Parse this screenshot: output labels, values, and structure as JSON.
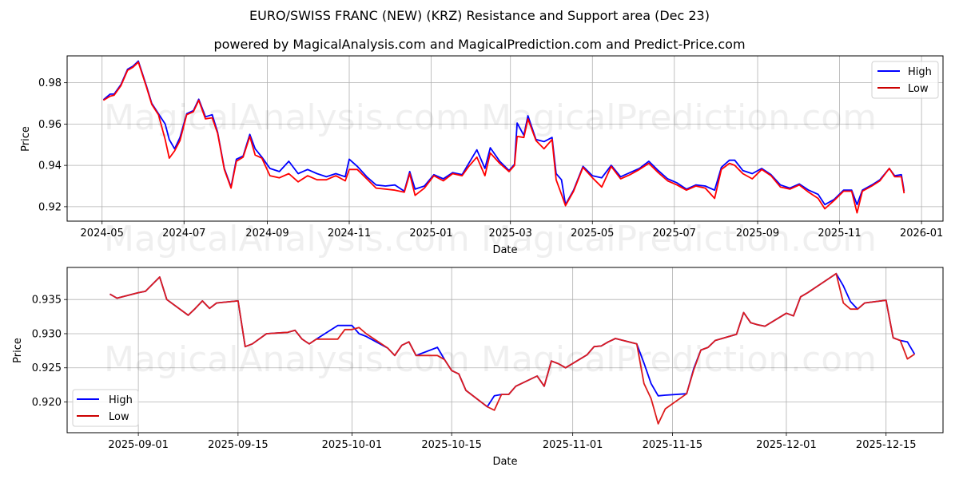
{
  "header": {
    "title": "EURO/SWISS FRANC (NEW) (KRZ) Resistance and Support area (Dec 23)",
    "subtitle": "powered by MagicalAnalysis.com and MagicalPrediction.com and Predict-Price.com"
  },
  "watermarks": [
    "MagicalAnalysis.com",
    "MagicalPrediction.com"
  ],
  "colors": {
    "high": "#0000ff",
    "low": "#ff0000",
    "grid": "#b0b0b0"
  },
  "chart_data": [
    {
      "type": "line",
      "title": "EURO/SWISS FRANC (NEW) (KRZ) Resistance and Support area (Dec 23)",
      "xlabel": "Date",
      "ylabel": "Price",
      "ylim": [
        0.913,
        0.993
      ],
      "xlim": [
        "2024-04-05",
        "2026-01-17"
      ],
      "grid": true,
      "legend_position": "upper right",
      "x_ticks": [
        "2024-05",
        "2024-07",
        "2024-09",
        "2024-11",
        "2025-01",
        "2025-03",
        "2025-05",
        "2025-07",
        "2025-09",
        "2025-11",
        "2026-01"
      ],
      "y_ticks": [
        0.92,
        0.94,
        0.96,
        0.98
      ],
      "x": [
        "2024-05-02",
        "2024-05-07",
        "2024-05-10",
        "2024-05-15",
        "2024-05-20",
        "2024-05-24",
        "2024-05-28",
        "2024-06-03",
        "2024-06-07",
        "2024-06-12",
        "2024-06-17",
        "2024-06-20",
        "2024-06-24",
        "2024-06-28",
        "2024-07-03",
        "2024-07-08",
        "2024-07-12",
        "2024-07-17",
        "2024-07-22",
        "2024-07-26",
        "2024-07-31",
        "2024-08-05",
        "2024-08-09",
        "2024-08-14",
        "2024-08-19",
        "2024-08-23",
        "2024-08-28",
        "2024-09-03",
        "2024-09-10",
        "2024-09-17",
        "2024-09-24",
        "2024-10-01",
        "2024-10-08",
        "2024-10-15",
        "2024-10-22",
        "2024-10-29",
        "2024-11-01",
        "2024-11-07",
        "2024-11-14",
        "2024-11-21",
        "2024-11-28",
        "2024-12-05",
        "2024-12-12",
        "2024-12-16",
        "2024-12-20",
        "2024-12-27",
        "2025-01-03",
        "2025-01-10",
        "2025-01-17",
        "2025-01-24",
        "2025-01-29",
        "2025-02-04",
        "2025-02-10",
        "2025-02-14",
        "2025-02-21",
        "2025-02-28",
        "2025-03-04",
        "2025-03-06",
        "2025-03-11",
        "2025-03-14",
        "2025-03-20",
        "2025-03-26",
        "2025-04-01",
        "2025-04-04",
        "2025-04-08",
        "2025-04-11",
        "2025-04-17",
        "2025-04-24",
        "2025-05-01",
        "2025-05-08",
        "2025-05-15",
        "2025-05-22",
        "2025-05-29",
        "2025-06-05",
        "2025-06-12",
        "2025-06-19",
        "2025-06-26",
        "2025-07-03",
        "2025-07-10",
        "2025-07-17",
        "2025-07-24",
        "2025-07-31",
        "2025-08-05",
        "2025-08-11",
        "2025-08-15",
        "2025-08-21",
        "2025-08-28",
        "2025-09-04",
        "2025-09-11",
        "2025-09-18",
        "2025-09-25",
        "2025-10-02",
        "2025-10-09",
        "2025-10-16",
        "2025-10-21",
        "2025-10-28",
        "2025-11-04",
        "2025-11-10",
        "2025-11-14",
        "2025-11-18",
        "2025-11-25",
        "2025-12-01",
        "2025-12-08",
        "2025-12-12",
        "2025-12-17",
        "2025-12-19"
      ],
      "series": [
        {
          "name": "High",
          "values": [
            0.9718,
            0.9745,
            0.9745,
            0.979,
            0.9865,
            0.988,
            0.9905,
            0.9785,
            0.97,
            0.965,
            0.96,
            0.9525,
            0.948,
            0.9535,
            0.965,
            0.9665,
            0.972,
            0.9635,
            0.9645,
            0.956,
            0.9385,
            0.9295,
            0.943,
            0.9445,
            0.955,
            0.948,
            0.944,
            0.9385,
            0.937,
            0.942,
            0.936,
            0.938,
            0.936,
            0.9345,
            0.936,
            0.9345,
            0.943,
            0.9395,
            0.9345,
            0.9305,
            0.93,
            0.9305,
            0.9275,
            0.937,
            0.9285,
            0.93,
            0.9355,
            0.9335,
            0.9365,
            0.9355,
            0.941,
            0.9475,
            0.9385,
            0.9485,
            0.942,
            0.9375,
            0.9405,
            0.9605,
            0.9545,
            0.964,
            0.9525,
            0.9515,
            0.9535,
            0.936,
            0.933,
            0.921,
            0.928,
            0.9395,
            0.935,
            0.934,
            0.94,
            0.9345,
            0.9365,
            0.9385,
            0.942,
            0.9375,
            0.9335,
            0.9315,
            0.9285,
            0.9305,
            0.93,
            0.928,
            0.939,
            0.9425,
            0.9425,
            0.9375,
            0.936,
            0.9385,
            0.9355,
            0.9305,
            0.929,
            0.931,
            0.928,
            0.926,
            0.921,
            0.9235,
            0.928,
            0.928,
            0.921,
            0.928,
            0.9305,
            0.933,
            0.9385,
            0.935,
            0.9355,
            0.9275
          ]
        },
        {
          "name": "Low",
          "values": [
            0.9715,
            0.9735,
            0.974,
            0.9785,
            0.986,
            0.9875,
            0.99,
            0.978,
            0.9695,
            0.9645,
            0.9525,
            0.9435,
            0.947,
            0.952,
            0.9645,
            0.966,
            0.9715,
            0.9625,
            0.963,
            0.9555,
            0.938,
            0.929,
            0.942,
            0.944,
            0.954,
            0.945,
            0.9435,
            0.935,
            0.934,
            0.936,
            0.932,
            0.935,
            0.933,
            0.933,
            0.935,
            0.9325,
            0.938,
            0.938,
            0.9335,
            0.929,
            0.9285,
            0.928,
            0.927,
            0.936,
            0.9255,
            0.929,
            0.935,
            0.9325,
            0.936,
            0.935,
            0.9395,
            0.944,
            0.935,
            0.946,
            0.941,
            0.937,
            0.94,
            0.954,
            0.9535,
            0.9625,
            0.952,
            0.948,
            0.9525,
            0.933,
            0.926,
            0.9205,
            0.9275,
            0.939,
            0.934,
            0.9295,
            0.9395,
            0.9335,
            0.9355,
            0.938,
            0.941,
            0.9365,
            0.9325,
            0.9305,
            0.928,
            0.93,
            0.929,
            0.924,
            0.938,
            0.941,
            0.94,
            0.936,
            0.9335,
            0.938,
            0.935,
            0.9295,
            0.9285,
            0.9305,
            0.927,
            0.924,
            0.919,
            0.923,
            0.9275,
            0.9275,
            0.917,
            0.9275,
            0.93,
            0.9325,
            0.9385,
            0.9345,
            0.9345,
            0.9265
          ]
        }
      ]
    },
    {
      "type": "line",
      "xlabel": "Date",
      "ylabel": "Price",
      "ylim": [
        0.9155,
        0.9397
      ],
      "xlim": [
        "2025-08-22",
        "2025-12-23"
      ],
      "grid": true,
      "legend_position": "lower left",
      "x_ticks": [
        "2025-09-01",
        "2025-09-15",
        "2025-10-01",
        "2025-10-15",
        "2025-11-01",
        "2025-11-15",
        "2025-12-01",
        "2025-12-15"
      ],
      "y_ticks": [
        0.92,
        0.925,
        0.93,
        0.935
      ],
      "x": [
        "2025-08-28",
        "2025-08-29",
        "2025-09-01",
        "2025-09-02",
        "2025-09-04",
        "2025-09-05",
        "2025-09-08",
        "2025-09-09",
        "2025-09-10",
        "2025-09-11",
        "2025-09-12",
        "2025-09-15",
        "2025-09-16",
        "2025-09-17",
        "2025-09-19",
        "2025-09-22",
        "2025-09-23",
        "2025-09-24",
        "2025-09-25",
        "2025-09-26",
        "2025-09-29",
        "2025-09-30",
        "2025-10-01",
        "2025-10-02",
        "2025-10-03",
        "2025-10-06",
        "2025-10-07",
        "2025-10-08",
        "2025-10-09",
        "2025-10-10",
        "2025-10-13",
        "2025-10-14",
        "2025-10-15",
        "2025-10-16",
        "2025-10-17",
        "2025-10-20",
        "2025-10-21",
        "2025-10-22",
        "2025-10-23",
        "2025-10-24",
        "2025-10-27",
        "2025-10-28",
        "2025-10-29",
        "2025-10-30",
        "2025-10-31",
        "2025-11-03",
        "2025-11-04",
        "2025-11-05",
        "2025-11-06",
        "2025-11-07",
        "2025-11-10",
        "2025-11-11",
        "2025-11-12",
        "2025-11-13",
        "2025-11-14",
        "2025-11-17",
        "2025-11-18",
        "2025-11-19",
        "2025-11-20",
        "2025-11-21",
        "2025-11-24",
        "2025-11-25",
        "2025-11-26",
        "2025-11-27",
        "2025-11-28",
        "2025-12-01",
        "2025-12-02",
        "2025-12-03",
        "2025-12-04",
        "2025-12-08",
        "2025-12-09",
        "2025-12-10",
        "2025-12-11",
        "2025-12-12",
        "2025-12-15",
        "2025-12-16",
        "2025-12-17",
        "2025-12-18",
        "2025-12-19"
      ],
      "series": [
        {
          "name": "High",
          "values": [
            0.9358,
            0.9352,
            0.936,
            0.9362,
            0.9383,
            0.935,
            0.9327,
            0.9337,
            0.9348,
            0.9337,
            0.9345,
            0.9348,
            0.9281,
            0.9285,
            0.93,
            0.9302,
            0.9305,
            0.9292,
            0.9285,
            0.9292,
            0.9312,
            0.9312,
            0.9312,
            0.93,
            0.9296,
            0.9279,
            0.9268,
            0.9283,
            0.9288,
            0.9268,
            0.928,
            0.9262,
            0.9246,
            0.9241,
            0.9217,
            0.9193,
            0.9209,
            0.9211,
            0.9211,
            0.9223,
            0.9238,
            0.9223,
            0.926,
            0.9256,
            0.925,
            0.9269,
            0.9281,
            0.9282,
            0.9288,
            0.9293,
            0.9285,
            0.9257,
            0.9227,
            0.9209,
            0.921,
            0.9212,
            0.9249,
            0.9276,
            0.928,
            0.929,
            0.9299,
            0.9331,
            0.9316,
            0.9313,
            0.9311,
            0.933,
            0.9326,
            0.9354,
            0.936,
            0.9388,
            0.937,
            0.9347,
            0.9336,
            0.9345,
            0.9349,
            0.9294,
            0.929,
            0.9288,
            0.927
          ]
        },
        {
          "name": "Low",
          "values": [
            0.9358,
            0.9352,
            0.936,
            0.9362,
            0.9383,
            0.935,
            0.9327,
            0.9337,
            0.9348,
            0.9337,
            0.9345,
            0.9348,
            0.9281,
            0.9285,
            0.93,
            0.9302,
            0.9305,
            0.9292,
            0.9285,
            0.9292,
            0.9292,
            0.9306,
            0.9306,
            0.9309,
            0.93,
            0.9279,
            0.9268,
            0.9283,
            0.9288,
            0.9268,
            0.9268,
            0.9262,
            0.9246,
            0.9241,
            0.9217,
            0.9193,
            0.9188,
            0.9211,
            0.9211,
            0.9223,
            0.9238,
            0.9223,
            0.926,
            0.9256,
            0.925,
            0.9269,
            0.9281,
            0.9282,
            0.9288,
            0.9293,
            0.9285,
            0.9227,
            0.9205,
            0.9168,
            0.919,
            0.9212,
            0.9247,
            0.9276,
            0.928,
            0.929,
            0.9299,
            0.9331,
            0.9316,
            0.9313,
            0.9311,
            0.933,
            0.9326,
            0.9354,
            0.936,
            0.9388,
            0.9345,
            0.9336,
            0.9336,
            0.9345,
            0.9349,
            0.9294,
            0.929,
            0.9263,
            0.927
          ]
        }
      ]
    }
  ],
  "legend": {
    "high_label": "High",
    "low_label": "Low"
  },
  "axes": {
    "x_label": "Date",
    "y_label": "Price"
  }
}
